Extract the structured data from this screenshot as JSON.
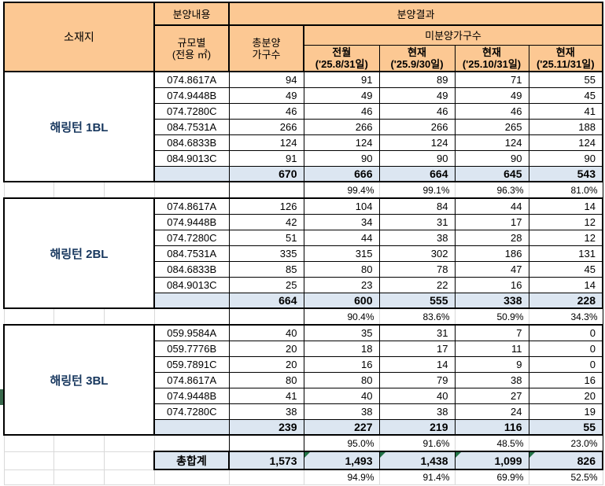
{
  "header": {
    "sojaeji": "소재지",
    "bunyang_naeyong": "분양내용",
    "bunyang_gyeolgwa": "분양결과",
    "gyumo_line1": "규모별",
    "gyumo_line2": "(전용 ㎡)",
    "chong_line1": "총분양",
    "chong_line2": "가구수",
    "mibunyang": "미분양가구수",
    "date_cols": [
      {
        "label": "전월",
        "date": "('25.8/31일)"
      },
      {
        "label": "현재",
        "date": "('25.9/30일)"
      },
      {
        "label": "현재",
        "date": "('25.10/31일)"
      },
      {
        "label": "현재",
        "date": "('25.11/31일)"
      }
    ]
  },
  "blocks": [
    {
      "site": "해링턴 1BL",
      "rows": [
        {
          "code": "074.8617A",
          "values": [
            "94",
            "91",
            "89",
            "71",
            "55"
          ]
        },
        {
          "code": "074.9448B",
          "values": [
            "49",
            "49",
            "49",
            "49",
            "45"
          ]
        },
        {
          "code": "074.7280C",
          "values": [
            "46",
            "46",
            "46",
            "46",
            "41"
          ]
        },
        {
          "code": "084.7531A",
          "values": [
            "266",
            "266",
            "266",
            "265",
            "188"
          ]
        },
        {
          "code": "084.6833B",
          "values": [
            "124",
            "124",
            "124",
            "124",
            "124"
          ]
        },
        {
          "code": "084.9013C",
          "values": [
            "91",
            "90",
            "90",
            "90",
            "90"
          ]
        }
      ],
      "subtotal": [
        "670",
        "666",
        "664",
        "645",
        "543"
      ],
      "percent": [
        "99.4%",
        "99.1%",
        "96.3%",
        "81.0%"
      ]
    },
    {
      "site": "해링턴 2BL",
      "rows": [
        {
          "code": "074.8617A",
          "values": [
            "126",
            "104",
            "84",
            "44",
            "14"
          ]
        },
        {
          "code": "074.9448B",
          "values": [
            "42",
            "34",
            "31",
            "17",
            "12"
          ]
        },
        {
          "code": "074.7280C",
          "values": [
            "51",
            "44",
            "38",
            "28",
            "12"
          ]
        },
        {
          "code": "084.7531A",
          "values": [
            "335",
            "315",
            "302",
            "186",
            "131"
          ]
        },
        {
          "code": "084.6833B",
          "values": [
            "85",
            "80",
            "78",
            "47",
            "45"
          ]
        },
        {
          "code": "084.9013C",
          "values": [
            "25",
            "23",
            "22",
            "16",
            "14"
          ]
        }
      ],
      "subtotal": [
        "664",
        "600",
        "555",
        "338",
        "228"
      ],
      "percent": [
        "90.4%",
        "83.6%",
        "50.9%",
        "34.3%"
      ]
    },
    {
      "site": "해링턴 3BL",
      "rows": [
        {
          "code": "059.9584A",
          "values": [
            "40",
            "35",
            "31",
            "7",
            "0"
          ]
        },
        {
          "code": "059.7776B",
          "values": [
            "20",
            "18",
            "17",
            "11",
            "0"
          ]
        },
        {
          "code": "059.7891C",
          "values": [
            "20",
            "16",
            "14",
            "9",
            "0"
          ]
        },
        {
          "code": "074.8617A",
          "values": [
            "80",
            "80",
            "79",
            "38",
            "16"
          ]
        },
        {
          "code": "074.9448B",
          "values": [
            "41",
            "40",
            "40",
            "27",
            "20"
          ]
        },
        {
          "code": "074.7280C",
          "values": [
            "38",
            "38",
            "38",
            "24",
            "19"
          ]
        }
      ],
      "subtotal": [
        "239",
        "227",
        "219",
        "116",
        "55"
      ],
      "percent": [
        "95.0%",
        "91.6%",
        "48.5%",
        "23.0%"
      ]
    }
  ],
  "grand_total": {
    "label": "총합계",
    "values": [
      "1,573",
      "1,493",
      "1,438",
      "1,099",
      "826"
    ],
    "percent": [
      "94.9%",
      "91.4%",
      "69.9%",
      "52.5%"
    ]
  },
  "colors": {
    "header_bg": "#FCC893",
    "subtotal_bg": "#DCE6F1",
    "site_text": "#17375E",
    "comment_triangle": "#217346",
    "gutter_marker": "#3A6A4D",
    "gridline": "#D9D9D9"
  }
}
